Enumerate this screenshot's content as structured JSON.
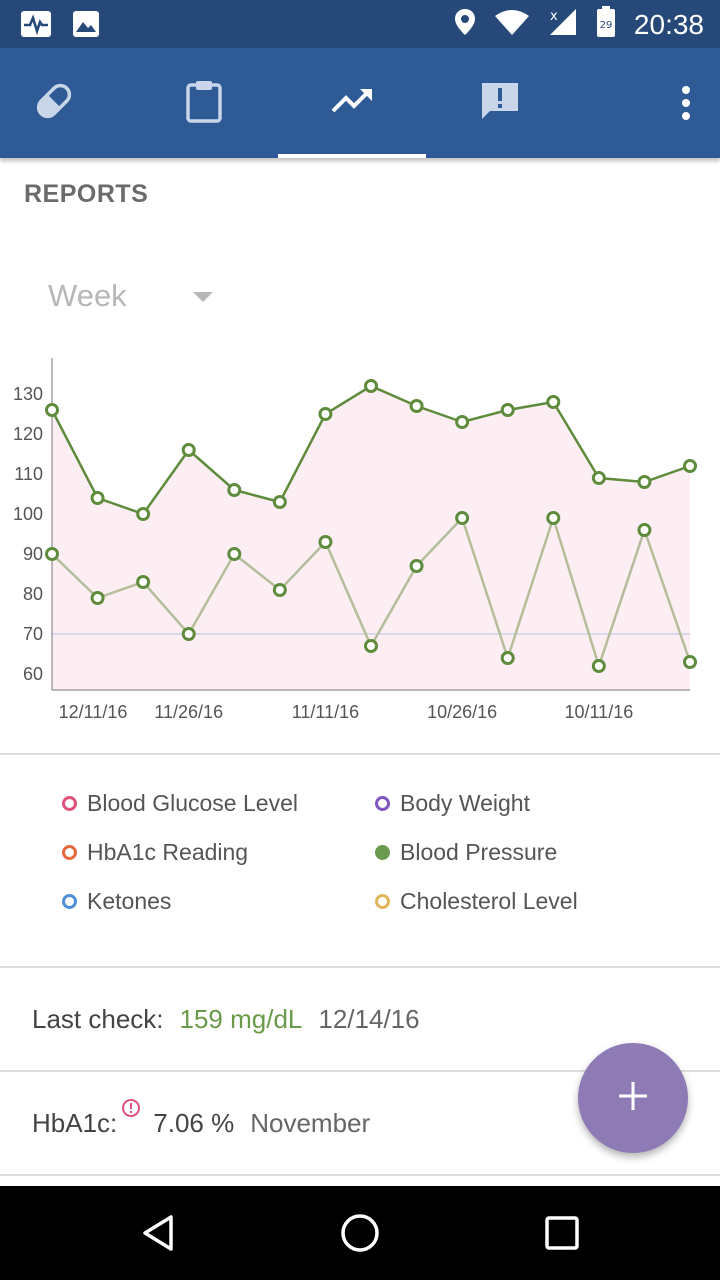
{
  "status_bar": {
    "time": "20:38",
    "battery_level": "29",
    "left_icons": [
      "pulse-notification-icon",
      "image-notification-icon"
    ],
    "right_icons": [
      "location-icon",
      "wifi-icon",
      "signal-icon",
      "battery-icon"
    ]
  },
  "nav_tabs": [
    {
      "icon": "pill-icon",
      "active": false
    },
    {
      "icon": "clipboard-icon",
      "active": false
    },
    {
      "icon": "trending-up-icon",
      "active": true
    },
    {
      "icon": "feedback-alert-icon",
      "active": false
    }
  ],
  "colors": {
    "app_bar": "#2e5a96",
    "status_bar": "#27497a",
    "series_line_1": "#5e8c3c",
    "series_line_2": "#b6bd9a",
    "chart_fill": "#fdeef3",
    "target_line": "#d8d8ec",
    "fab": "#8e7bb6",
    "value_green": "#6b9a4a"
  },
  "reports": {
    "title": "REPORTS",
    "period": "Week"
  },
  "chart_data": {
    "type": "line",
    "y_ticks": [
      "130",
      "120",
      "110",
      "100",
      "90",
      "80",
      "70",
      "60"
    ],
    "ylim": [
      56,
      139
    ],
    "x_tick_labels": [
      {
        "label": "12/11/16",
        "index": 0.9
      },
      {
        "label": "11/26/16",
        "index": 3
      },
      {
        "label": "11/11/16",
        "index": 6
      },
      {
        "label": "10/26/16",
        "index": 9
      },
      {
        "label": "10/11/16",
        "index": 12
      }
    ],
    "point_count": 15,
    "reference_line_value": 70,
    "series": [
      {
        "values": [
          126,
          104,
          100,
          116,
          106,
          103,
          125,
          132,
          127,
          123,
          126,
          128,
          109,
          108,
          112
        ]
      },
      {
        "values": [
          90,
          79,
          83,
          70,
          90,
          81,
          93,
          67,
          87,
          99,
          64,
          99,
          62,
          96,
          63
        ]
      }
    ]
  },
  "legend": [
    {
      "label": "Blood Glucose Level",
      "color": "#e0507a",
      "filled": false
    },
    {
      "label": "Body Weight",
      "color": "#7e57c2",
      "filled": false
    },
    {
      "label": "HbA1c Reading",
      "color": "#e8683e",
      "filled": false
    },
    {
      "label": "Blood Pressure",
      "color": "#6a9a4e",
      "filled": true
    },
    {
      "label": "Ketones",
      "color": "#4f8fd8",
      "filled": false
    },
    {
      "label": "Cholesterol Level",
      "color": "#e2b55a",
      "filled": false
    }
  ],
  "last_check": {
    "label": "Last check:",
    "value": "159 mg/dL",
    "date": "12/14/16"
  },
  "hba1c": {
    "label": "HbA1c:",
    "value": "7.06 %",
    "period": "November"
  }
}
